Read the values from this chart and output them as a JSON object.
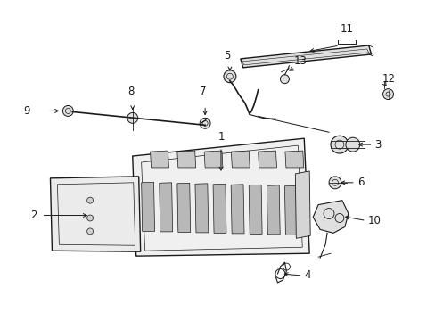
{
  "background_color": "#ffffff",
  "fig_width": 4.89,
  "fig_height": 3.6,
  "dpi": 100,
  "line_color": "#1a1a1a",
  "label_fontsize": 8.5
}
